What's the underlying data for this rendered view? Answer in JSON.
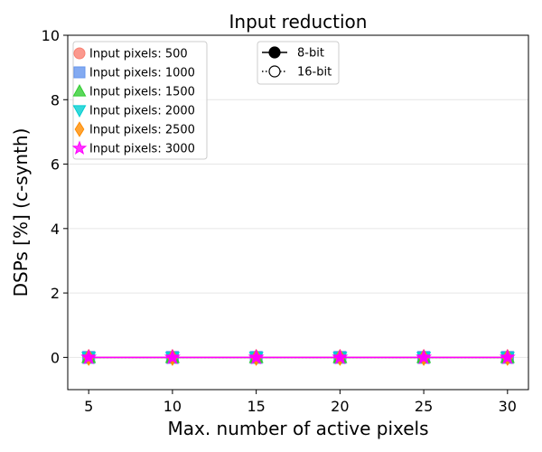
{
  "chart_data": {
    "type": "line",
    "title": "Input reduction",
    "xlabel": "Max. number of active pixels",
    "ylabel": "DSPs [%] (c-synth)",
    "x": [
      5,
      10,
      15,
      20,
      25,
      30
    ],
    "xticks": [
      5,
      10,
      15,
      20,
      25,
      30
    ],
    "xlim": [
      3.75,
      31.25
    ],
    "yticks": [
      0,
      2,
      4,
      6,
      8,
      10
    ],
    "ylim": [
      -1,
      10
    ],
    "grid": "horizontal",
    "series_legend_title": "",
    "series": [
      {
        "name": "Input pixels: 500",
        "color": "#fa8072",
        "marker": "circle",
        "values_8bit": [
          0,
          0,
          0,
          0,
          0,
          0
        ],
        "values_16bit": [
          0,
          0,
          0,
          0,
          0,
          0
        ]
      },
      {
        "name": "Input pixels: 1000",
        "color": "#6495ed",
        "marker": "square",
        "values_8bit": [
          0,
          0,
          0,
          0,
          0,
          0
        ],
        "values_16bit": [
          0,
          0,
          0,
          0,
          0,
          0
        ]
      },
      {
        "name": "Input pixels: 1500",
        "color": "#32cd32",
        "marker": "triangle-up",
        "values_8bit": [
          0,
          0,
          0,
          0,
          0,
          0
        ],
        "values_16bit": [
          0,
          0,
          0,
          0,
          0,
          0
        ]
      },
      {
        "name": "Input pixels: 2000",
        "color": "#00ced1",
        "marker": "triangle-down",
        "values_8bit": [
          0,
          0,
          0,
          0,
          0,
          0
        ],
        "values_16bit": [
          0,
          0,
          0,
          0,
          0,
          0
        ]
      },
      {
        "name": "Input pixels: 2500",
        "color": "#ff8c00",
        "marker": "diamond",
        "values_8bit": [
          0,
          0,
          0,
          0,
          0,
          0
        ],
        "values_16bit": [
          0,
          0,
          0,
          0,
          0,
          0
        ]
      },
      {
        "name": "Input pixels: 3000",
        "color": "#ff00ff",
        "marker": "star",
        "values_8bit": [
          0,
          0,
          0,
          0,
          0,
          0
        ],
        "values_16bit": [
          0,
          0,
          0,
          0,
          0,
          0
        ]
      }
    ],
    "style_legend": [
      {
        "label": "8-bit",
        "line": "solid",
        "marker": "filled-circle"
      },
      {
        "label": "16-bit",
        "line": "dotted",
        "marker": "open-circle"
      }
    ],
    "legend_position": "top-left"
  }
}
